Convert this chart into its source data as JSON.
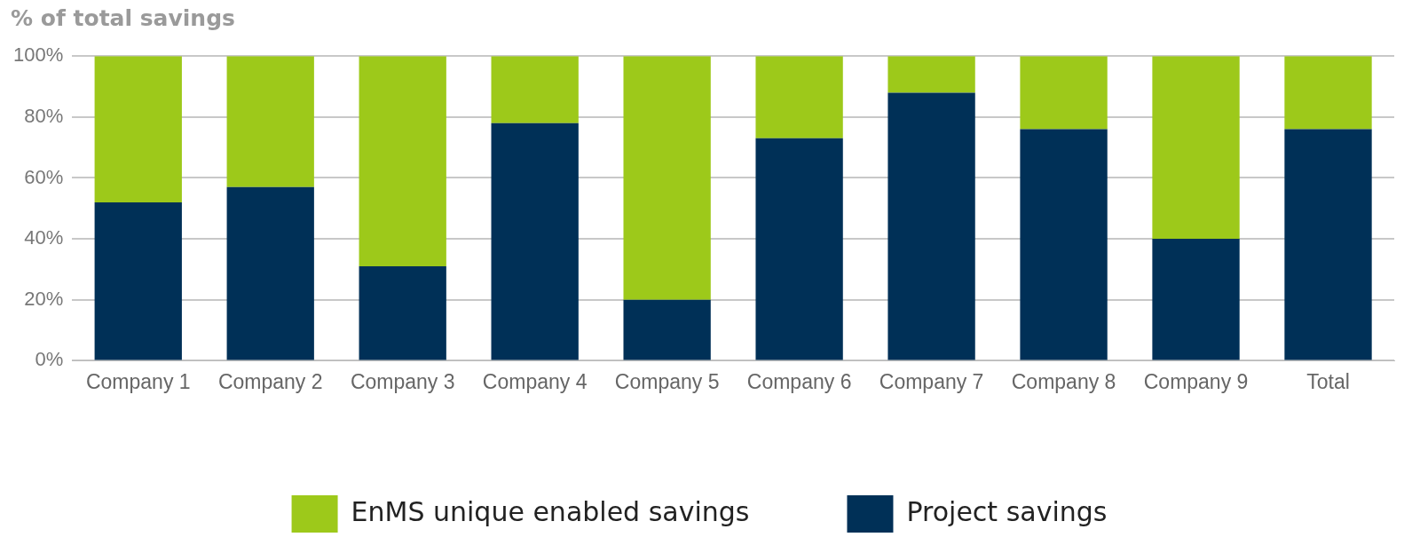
{
  "chart_data": {
    "type": "bar",
    "stacked": true,
    "ylabel": "% of total savings",
    "categories": [
      "Company 1",
      "Company 2",
      "Company 3",
      "Company 4",
      "Company 5",
      "Company 6",
      "Company 7",
      "Company 8",
      "Company 9",
      "Total"
    ],
    "series": [
      {
        "name": "Project savings",
        "color": "#003057",
        "values": [
          52,
          57,
          31,
          78,
          20,
          73,
          88,
          76,
          40,
          76
        ]
      },
      {
        "name": "EnMS unique enabled savings",
        "color": "#9dc91a",
        "values": [
          48,
          43,
          69,
          22,
          80,
          27,
          12,
          24,
          60,
          24
        ]
      }
    ],
    "ylim": [
      0,
      100
    ],
    "yticks": [
      {
        "value": 0,
        "label": "0%"
      },
      {
        "value": 20,
        "label": "20%"
      },
      {
        "value": 40,
        "label": "40%"
      },
      {
        "value": 60,
        "label": "60%"
      },
      {
        "value": 80,
        "label": "80%"
      },
      {
        "value": 100,
        "label": "100%"
      }
    ],
    "grid": "y",
    "legend": "bottom"
  }
}
